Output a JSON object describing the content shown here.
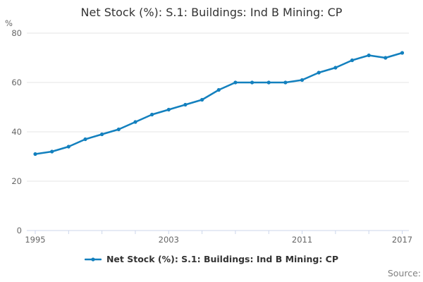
{
  "title": "Net Stock (%): S.1: Buildings: Ind B Mining: CP",
  "y_axis_unit_label": "%",
  "legend": {
    "label": "Net Stock (%): S.1: Buildings: Ind B Mining: CP"
  },
  "source_label": "Source:",
  "colors": {
    "line": "#1380be",
    "grid": "#e6e6e6",
    "axis": "#ccd6eb",
    "tick_label": "#666666",
    "title_text": "#333333",
    "source_text": "#808080"
  },
  "chart_data": {
    "type": "line",
    "title": "Net Stock (%): S.1: Buildings: Ind B Mining: CP",
    "xlabel": "",
    "ylabel": "%",
    "ylim": [
      0,
      80
    ],
    "grid": "horizontal",
    "legend_position": "bottom",
    "x": [
      1995,
      1996,
      1997,
      1998,
      1999,
      2000,
      2001,
      2002,
      2003,
      2004,
      2005,
      2006,
      2007,
      2008,
      2009,
      2010,
      2011,
      2012,
      2013,
      2014,
      2015,
      2016,
      2017
    ],
    "series": [
      {
        "name": "Net Stock (%): S.1: Buildings: Ind B Mining: CP",
        "values": [
          31,
          32,
          34,
          37,
          39,
          41,
          44,
          47,
          49,
          51,
          53,
          57,
          60,
          60,
          60,
          60,
          61,
          64,
          66,
          69,
          71,
          70,
          72
        ]
      }
    ],
    "y_ticks": [
      0,
      20,
      40,
      60,
      80
    ],
    "x_tick_years": [
      1995,
      1997,
      1999,
      2001,
      2003,
      2005,
      2007,
      2009,
      2011,
      2013,
      2015,
      2017
    ],
    "x_labeled_years": [
      1995,
      2003,
      2011,
      2017
    ]
  }
}
